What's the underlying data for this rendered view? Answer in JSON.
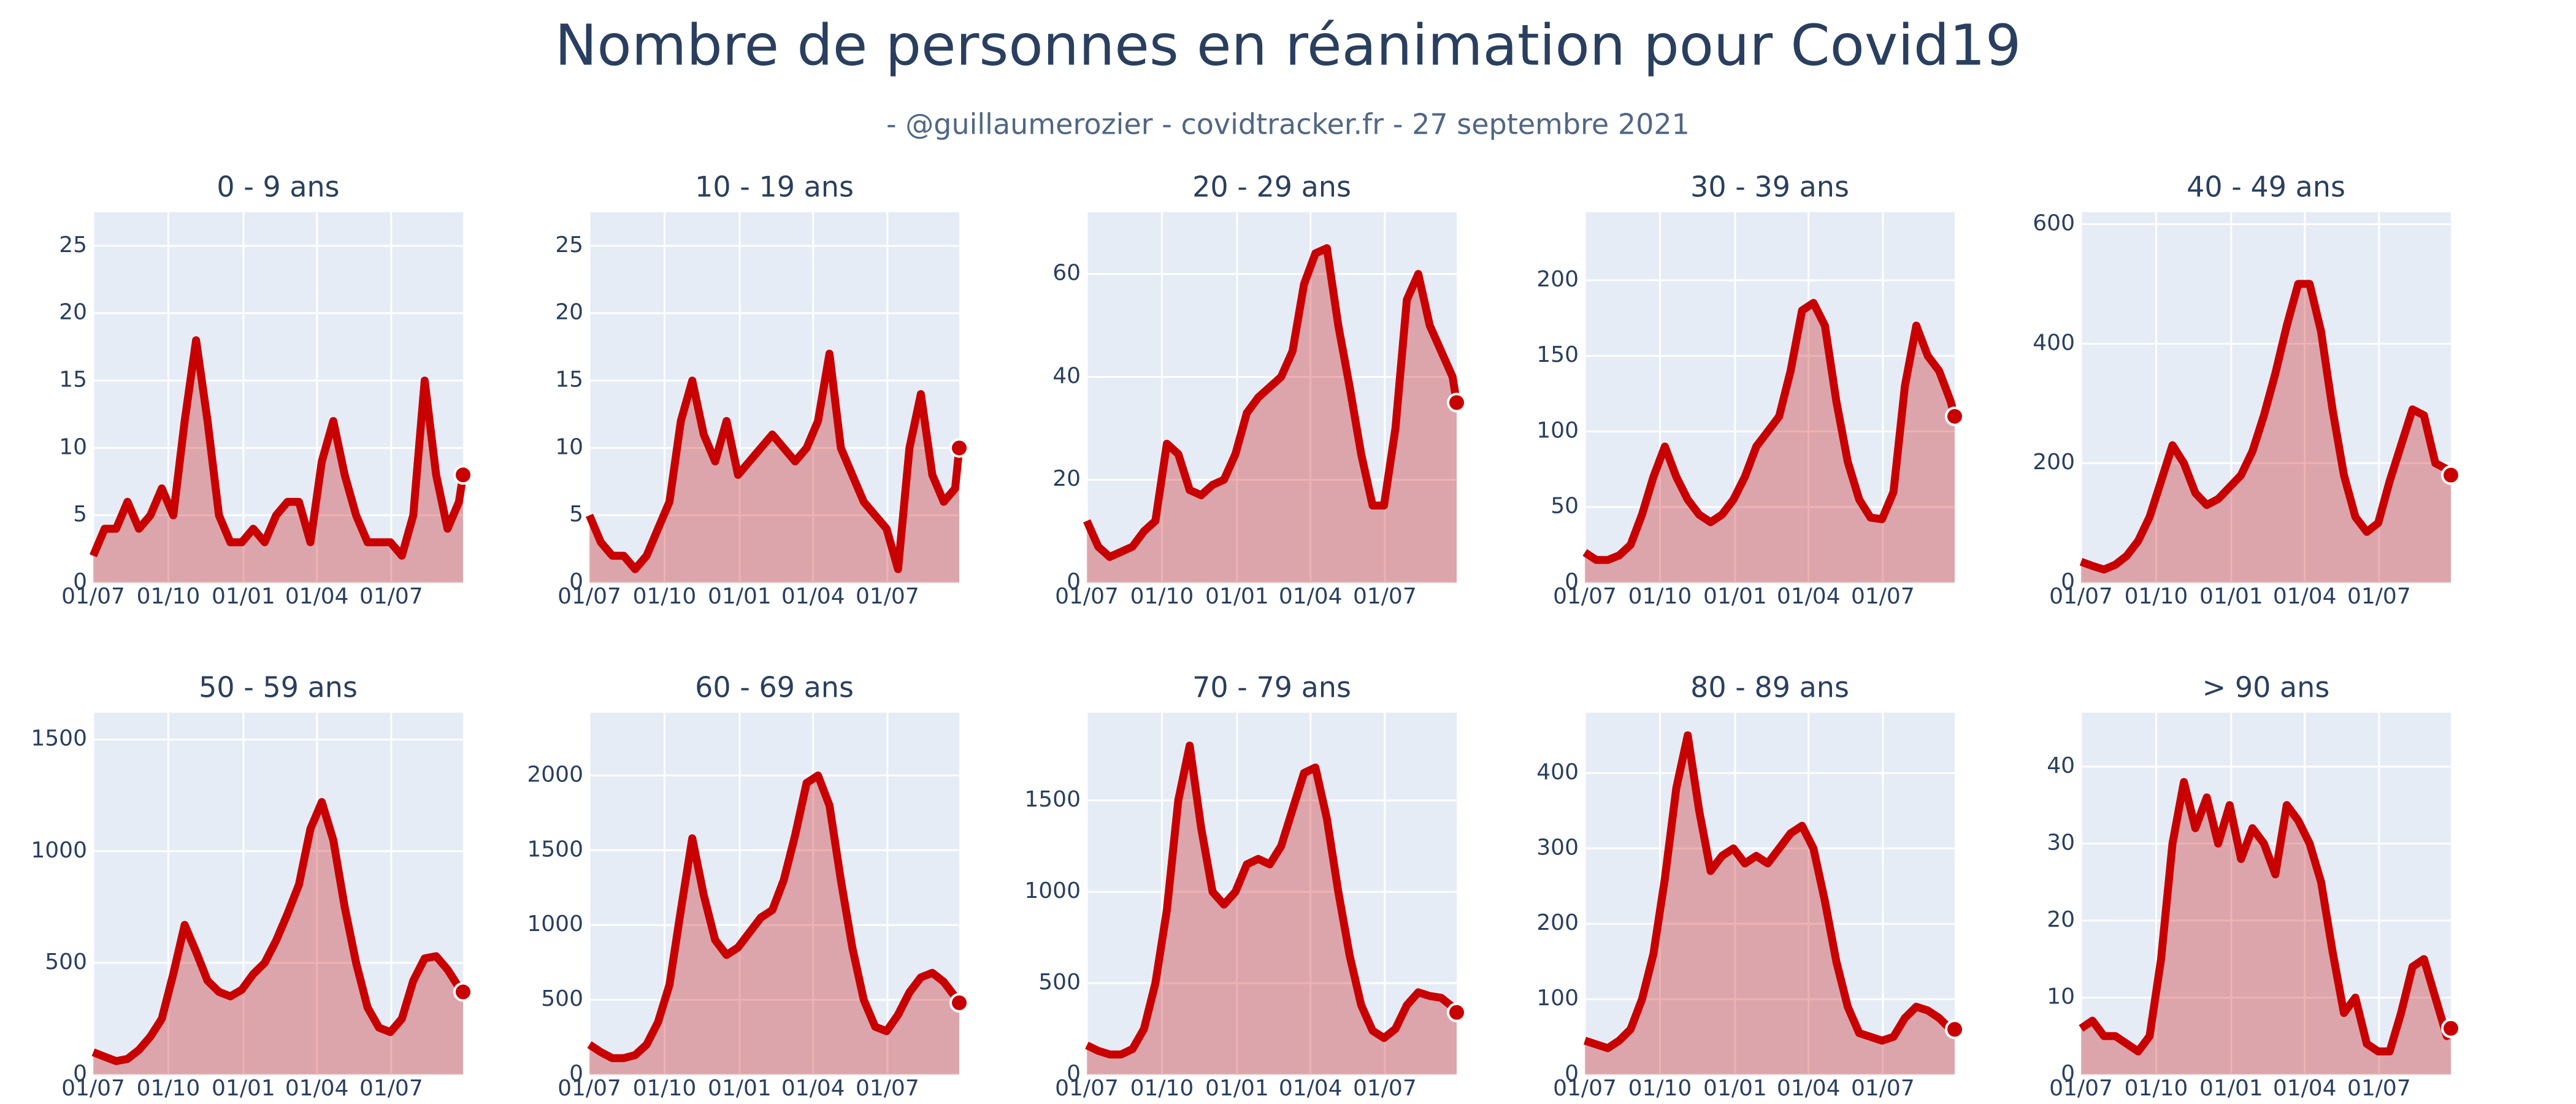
{
  "title": "Nombre de personnes en réanimation pour Covid19",
  "subtitle": "- @guillaumerozier - covidtracker.fr - 27 septembre 2021",
  "chart_data": [
    {
      "type": "area",
      "title": "0 - 9 ans",
      "color": "#c80000",
      "grid": true,
      "x": [
        0,
        14,
        28,
        42,
        56,
        70,
        84,
        98,
        112,
        126,
        140,
        154,
        168,
        182,
        196,
        210,
        224,
        238,
        252,
        266,
        280,
        294,
        308,
        322,
        336,
        350,
        364,
        378,
        392,
        406,
        420,
        434,
        448,
        453
      ],
      "xlim": [
        0,
        453
      ],
      "xticks": [
        {
          "value": 0,
          "label": "01/07"
        },
        {
          "value": 92,
          "label": "01/10"
        },
        {
          "value": 184,
          "label": "01/01"
        },
        {
          "value": 274,
          "label": "01/04"
        },
        {
          "value": 365,
          "label": "01/07"
        }
      ],
      "ylim": [
        0,
        27.5
      ],
      "yticks": [
        0,
        5,
        10,
        15,
        20,
        25
      ],
      "values": [
        2,
        4,
        4,
        6,
        4,
        5,
        7,
        5,
        12,
        18,
        12,
        5,
        3,
        3,
        4,
        3,
        5,
        6,
        6,
        3,
        9,
        12,
        8,
        5,
        3,
        3,
        3,
        2,
        5,
        15,
        8,
        4,
        6,
        8
      ]
    },
    {
      "type": "area",
      "title": "10 - 19 ans",
      "color": "#c80000",
      "grid": true,
      "x": [
        0,
        14,
        28,
        42,
        56,
        70,
        84,
        98,
        112,
        126,
        140,
        154,
        168,
        182,
        196,
        210,
        224,
        238,
        252,
        266,
        280,
        294,
        308,
        322,
        336,
        350,
        364,
        378,
        392,
        406,
        420,
        434,
        448,
        453
      ],
      "xlim": [
        0,
        453
      ],
      "xticks": [
        {
          "value": 0,
          "label": "01/07"
        },
        {
          "value": 92,
          "label": "01/10"
        },
        {
          "value": 184,
          "label": "01/01"
        },
        {
          "value": 274,
          "label": "01/04"
        },
        {
          "value": 365,
          "label": "01/07"
        }
      ],
      "ylim": [
        0,
        27.5
      ],
      "yticks": [
        0,
        5,
        10,
        15,
        20,
        25
      ],
      "values": [
        5,
        3,
        2,
        2,
        1,
        2,
        4,
        6,
        12,
        15,
        11,
        9,
        12,
        8,
        9,
        10,
        11,
        10,
        9,
        10,
        12,
        17,
        10,
        8,
        6,
        5,
        4,
        1,
        10,
        14,
        8,
        6,
        7,
        10
      ]
    },
    {
      "type": "area",
      "title": "20 - 29 ans",
      "color": "#c80000",
      "grid": true,
      "x": [
        0,
        14,
        28,
        42,
        56,
        70,
        84,
        98,
        112,
        126,
        140,
        154,
        168,
        182,
        196,
        210,
        224,
        238,
        252,
        266,
        280,
        294,
        308,
        322,
        336,
        350,
        364,
        378,
        392,
        406,
        420,
        434,
        448,
        453
      ],
      "xlim": [
        0,
        453
      ],
      "xticks": [
        {
          "value": 0,
          "label": "01/07"
        },
        {
          "value": 92,
          "label": "01/10"
        },
        {
          "value": 184,
          "label": "01/01"
        },
        {
          "value": 274,
          "label": "01/04"
        },
        {
          "value": 365,
          "label": "01/07"
        }
      ],
      "ylim": [
        0,
        72
      ],
      "yticks": [
        0,
        20,
        40,
        60
      ],
      "values": [
        12,
        7,
        5,
        6,
        7,
        10,
        12,
        27,
        25,
        18,
        17,
        19,
        20,
        25,
        33,
        36,
        38,
        40,
        45,
        58,
        64,
        65,
        50,
        38,
        25,
        15,
        15,
        30,
        55,
        60,
        50,
        45,
        40,
        35
      ]
    },
    {
      "type": "area",
      "title": "30 - 39 ans",
      "color": "#c80000",
      "grid": true,
      "x": [
        0,
        14,
        28,
        42,
        56,
        70,
        84,
        98,
        112,
        126,
        140,
        154,
        168,
        182,
        196,
        210,
        224,
        238,
        252,
        266,
        280,
        294,
        308,
        322,
        336,
        350,
        364,
        378,
        392,
        406,
        420,
        434,
        448,
        453
      ],
      "xlim": [
        0,
        453
      ],
      "xticks": [
        {
          "value": 0,
          "label": "01/07"
        },
        {
          "value": 92,
          "label": "01/10"
        },
        {
          "value": 184,
          "label": "01/01"
        },
        {
          "value": 274,
          "label": "01/04"
        },
        {
          "value": 365,
          "label": "01/07"
        }
      ],
      "ylim": [
        0,
        245
      ],
      "yticks": [
        0,
        50,
        100,
        150,
        200
      ],
      "values": [
        20,
        15,
        15,
        18,
        25,
        45,
        70,
        90,
        70,
        55,
        45,
        40,
        45,
        55,
        70,
        90,
        100,
        110,
        140,
        180,
        185,
        170,
        120,
        80,
        55,
        43,
        42,
        60,
        130,
        170,
        150,
        140,
        120,
        110
      ]
    },
    {
      "type": "area",
      "title": "40 - 49 ans",
      "color": "#c80000",
      "grid": true,
      "x": [
        0,
        14,
        28,
        42,
        56,
        70,
        84,
        98,
        112,
        126,
        140,
        154,
        168,
        182,
        196,
        210,
        224,
        238,
        252,
        266,
        280,
        294,
        308,
        322,
        336,
        350,
        364,
        378,
        392,
        406,
        420,
        434,
        448,
        453
      ],
      "xlim": [
        0,
        453
      ],
      "xticks": [
        {
          "value": 0,
          "label": "01/07"
        },
        {
          "value": 92,
          "label": "01/10"
        },
        {
          "value": 184,
          "label": "01/01"
        },
        {
          "value": 274,
          "label": "01/04"
        },
        {
          "value": 365,
          "label": "01/07"
        }
      ],
      "ylim": [
        0,
        620
      ],
      "yticks": [
        0,
        200,
        400,
        600
      ],
      "values": [
        35,
        28,
        22,
        30,
        45,
        70,
        110,
        170,
        230,
        200,
        150,
        130,
        140,
        160,
        180,
        220,
        280,
        350,
        430,
        500,
        500,
        420,
        290,
        180,
        110,
        85,
        100,
        170,
        230,
        290,
        280,
        200,
        190,
        180
      ]
    },
    {
      "type": "area",
      "title": "50 - 59 ans",
      "color": "#c80000",
      "grid": true,
      "x": [
        0,
        14,
        28,
        42,
        56,
        70,
        84,
        98,
        112,
        126,
        140,
        154,
        168,
        182,
        196,
        210,
        224,
        238,
        252,
        266,
        280,
        294,
        308,
        322,
        336,
        350,
        364,
        378,
        392,
        406,
        420,
        434,
        448,
        453
      ],
      "xlim": [
        0,
        453
      ],
      "xticks": [
        {
          "value": 0,
          "label": "01/07"
        },
        {
          "value": 92,
          "label": "01/10"
        },
        {
          "value": 184,
          "label": "01/01"
        },
        {
          "value": 274,
          "label": "01/04"
        },
        {
          "value": 365,
          "label": "01/07"
        }
      ],
      "ylim": [
        0,
        1620
      ],
      "yticks": [
        0,
        500,
        1000,
        1500
      ],
      "values": [
        100,
        80,
        60,
        70,
        110,
        170,
        250,
        450,
        670,
        550,
        420,
        370,
        350,
        380,
        450,
        500,
        600,
        720,
        850,
        1100,
        1220,
        1050,
        750,
        500,
        300,
        210,
        190,
        250,
        420,
        520,
        530,
        470,
        390,
        370
      ]
    },
    {
      "type": "area",
      "title": "60 - 69 ans",
      "color": "#c80000",
      "grid": true,
      "x": [
        0,
        14,
        28,
        42,
        56,
        70,
        84,
        98,
        112,
        126,
        140,
        154,
        168,
        182,
        196,
        210,
        224,
        238,
        252,
        266,
        280,
        294,
        308,
        322,
        336,
        350,
        364,
        378,
        392,
        406,
        420,
        434,
        448,
        453
      ],
      "xlim": [
        0,
        453
      ],
      "xticks": [
        {
          "value": 0,
          "label": "01/07"
        },
        {
          "value": 92,
          "label": "01/10"
        },
        {
          "value": 184,
          "label": "01/01"
        },
        {
          "value": 274,
          "label": "01/04"
        },
        {
          "value": 365,
          "label": "01/07"
        }
      ],
      "ylim": [
        0,
        2420
      ],
      "yticks": [
        0,
        500,
        1000,
        1500,
        2000
      ],
      "values": [
        200,
        150,
        110,
        110,
        130,
        200,
        350,
        600,
        1100,
        1580,
        1200,
        900,
        800,
        850,
        950,
        1050,
        1100,
        1300,
        1600,
        1950,
        2000,
        1800,
        1300,
        850,
        500,
        320,
        290,
        400,
        550,
        650,
        680,
        620,
        520,
        480
      ]
    },
    {
      "type": "area",
      "title": "70 - 79 ans",
      "color": "#c80000",
      "grid": true,
      "x": [
        0,
        14,
        28,
        42,
        56,
        70,
        84,
        98,
        112,
        126,
        140,
        154,
        168,
        182,
        196,
        210,
        224,
        238,
        252,
        266,
        280,
        294,
        308,
        322,
        336,
        350,
        364,
        378,
        392,
        406,
        420,
        434,
        448,
        453
      ],
      "xlim": [
        0,
        453
      ],
      "xticks": [
        {
          "value": 0,
          "label": "01/07"
        },
        {
          "value": 92,
          "label": "01/10"
        },
        {
          "value": 184,
          "label": "01/01"
        },
        {
          "value": 274,
          "label": "01/04"
        },
        {
          "value": 365,
          "label": "01/07"
        }
      ],
      "ylim": [
        0,
        1980
      ],
      "yticks": [
        0,
        500,
        1000,
        1500
      ],
      "values": [
        160,
        130,
        110,
        110,
        140,
        250,
        500,
        900,
        1500,
        1800,
        1350,
        1000,
        930,
        1000,
        1150,
        1180,
        1150,
        1250,
        1450,
        1650,
        1680,
        1400,
        1000,
        650,
        380,
        240,
        200,
        250,
        380,
        450,
        430,
        420,
        370,
        340
      ]
    },
    {
      "type": "area",
      "title": "80 - 89 ans",
      "color": "#c80000",
      "grid": true,
      "x": [
        0,
        14,
        28,
        42,
        56,
        70,
        84,
        98,
        112,
        126,
        140,
        154,
        168,
        182,
        196,
        210,
        224,
        238,
        252,
        266,
        280,
        294,
        308,
        322,
        336,
        350,
        364,
        378,
        392,
        406,
        420,
        434,
        448,
        453
      ],
      "xlim": [
        0,
        453
      ],
      "xticks": [
        {
          "value": 0,
          "label": "01/07"
        },
        {
          "value": 92,
          "label": "01/10"
        },
        {
          "value": 184,
          "label": "01/01"
        },
        {
          "value": 274,
          "label": "01/04"
        },
        {
          "value": 365,
          "label": "01/07"
        }
      ],
      "ylim": [
        0,
        480
      ],
      "yticks": [
        0,
        100,
        200,
        300,
        400
      ],
      "values": [
        45,
        40,
        35,
        45,
        60,
        100,
        160,
        260,
        380,
        450,
        350,
        270,
        290,
        300,
        280,
        290,
        280,
        300,
        320,
        330,
        300,
        230,
        150,
        90,
        55,
        50,
        45,
        50,
        75,
        90,
        85,
        75,
        60,
        60
      ]
    },
    {
      "type": "area",
      "title": "> 90 ans",
      "color": "#c80000",
      "grid": true,
      "x": [
        0,
        14,
        28,
        42,
        56,
        70,
        84,
        98,
        112,
        126,
        140,
        154,
        168,
        182,
        196,
        210,
        224,
        238,
        252,
        266,
        280,
        294,
        308,
        322,
        336,
        350,
        364,
        378,
        392,
        406,
        420,
        434,
        448,
        453
      ],
      "xlim": [
        0,
        453
      ],
      "xticks": [
        {
          "value": 0,
          "label": "01/07"
        },
        {
          "value": 92,
          "label": "01/10"
        },
        {
          "value": 184,
          "label": "01/01"
        },
        {
          "value": 274,
          "label": "01/04"
        },
        {
          "value": 365,
          "label": "01/07"
        }
      ],
      "ylim": [
        0,
        47
      ],
      "yticks": [
        0,
        10,
        20,
        30,
        40
      ],
      "values": [
        6,
        7,
        5,
        5,
        4,
        3,
        5,
        15,
        30,
        38,
        32,
        36,
        30,
        35,
        28,
        32,
        30,
        26,
        35,
        33,
        30,
        25,
        16,
        8,
        10,
        4,
        3,
        3,
        8,
        14,
        15,
        10,
        5,
        6
      ]
    }
  ]
}
